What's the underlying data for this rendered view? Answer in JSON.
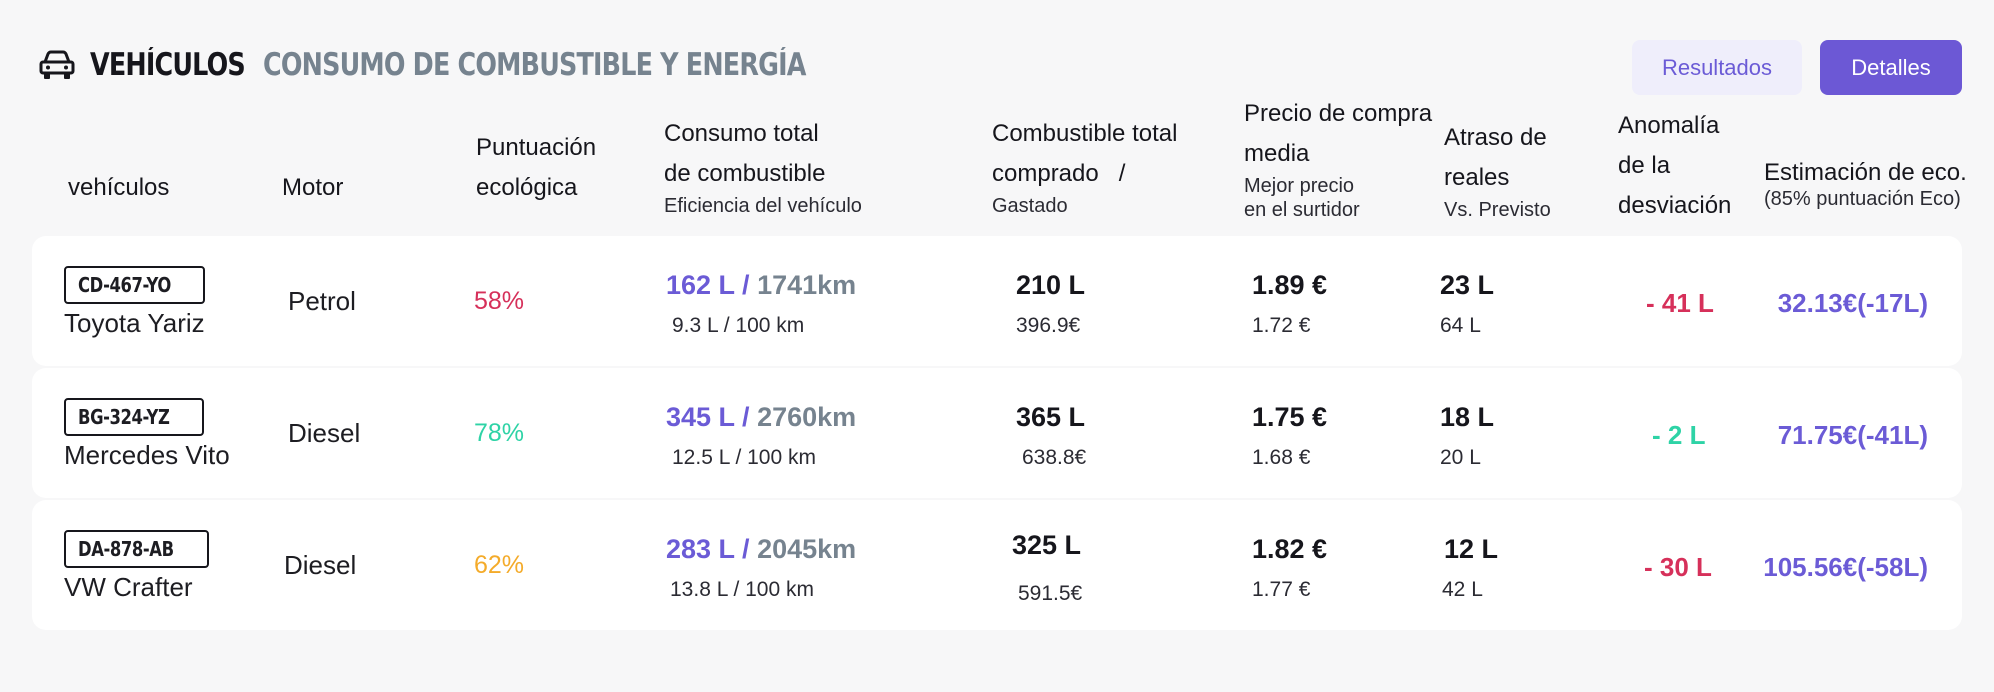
{
  "header": {
    "icon": "car-icon",
    "title": "VEHÍCULOS",
    "subtitle": "CONSUMO DE COMBUSTIBLE Y ENERGÍA"
  },
  "buttons": {
    "results": "Resultados",
    "details": "Detalles"
  },
  "columns": {
    "vehicles": "vehículos",
    "motor": "Motor",
    "eco": [
      "Puntuación",
      "ecológica"
    ],
    "consumption": [
      "Consumo total",
      "de combustible"
    ],
    "consumption_sub": "Eficiencia del vehículo",
    "fuel": [
      "Combustible total",
      "comprado   /"
    ],
    "fuel_sub": "Gastado",
    "price": [
      "Precio de compra",
      "media"
    ],
    "price_sub": [
      "Mejor precio",
      "en el surtidor"
    ],
    "delay": [
      "Atraso de",
      "reales"
    ],
    "delay_sub": "Vs. Previsto",
    "anomaly": [
      "Anomalía",
      "de la",
      "desviación"
    ],
    "estimate": "Estimación de eco.",
    "estimate_sub": "(85% puntuación Eco)"
  },
  "colors": {
    "accent": "#6c58d5",
    "red": "#d6305a",
    "green": "#2ed3a6",
    "orange": "#f4ab2a",
    "gray": "#76838f"
  },
  "rows": [
    {
      "plate": "CD-467-YO",
      "name": "Toyota Yariz",
      "motor": "Petrol",
      "eco": "58%",
      "eco_color": "#d6305a",
      "liters": "162 L /",
      "km": "1741km",
      "efficiency": "9.3 L / 100 km",
      "fuel": "210 L",
      "spent": "396.9€",
      "price": "1.89 €",
      "best_price": "1.72 €",
      "real": "23 L",
      "planned": "64 L",
      "anomaly": "- 41 L",
      "anomaly_color": "#d6305a",
      "estimate": "32.13€(-17L)"
    },
    {
      "plate": "BG-324-YZ",
      "name": "Mercedes Vito",
      "motor": "Diesel",
      "eco": "78%",
      "eco_color": "#2ed3a6",
      "liters": "345 L /",
      "km": "2760km",
      "efficiency": "12.5 L / 100 km",
      "fuel": "365 L",
      "spent": "638.8€",
      "price": "1.75 €",
      "best_price": "1.68 €",
      "real": "18 L",
      "planned": "20 L",
      "anomaly": "- 2 L",
      "anomaly_color": "#2ed3a6",
      "estimate": "71.75€(-41L)"
    },
    {
      "plate": "DA-878-AB",
      "name": "VW Crafter",
      "motor": "Diesel",
      "eco": "62%",
      "eco_color": "#f4ab2a",
      "liters": "283 L /",
      "km": "2045km",
      "efficiency": "13.8 L / 100 km",
      "fuel": "325 L",
      "spent": "591.5€",
      "price": "1.82 €",
      "best_price": "1.77 €",
      "real": "12 L",
      "planned": "42 L",
      "anomaly": "- 30 L",
      "anomaly_color": "#d6305a",
      "estimate": "105.56€(-58L)"
    }
  ]
}
